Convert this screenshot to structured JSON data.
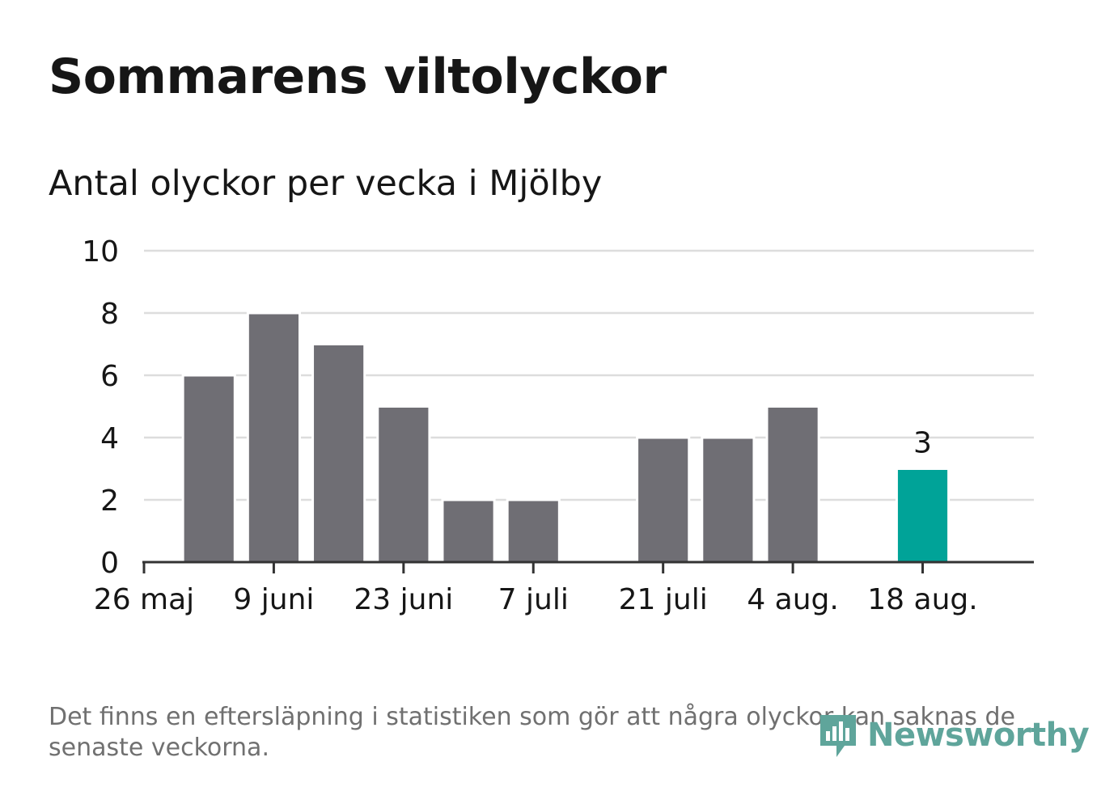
{
  "title": "Sommarens viltolyckor",
  "subtitle": "Antal olyckor per vecka i Mjölby",
  "footnote": "Det finns en eftersläpning i statistiken som gör att några olyckor kan saknas de senaste veckorna.",
  "brand": {
    "name": "Newsworthy",
    "icon": "newsworthy-logo-icon",
    "color": "#5fa59b"
  },
  "colors": {
    "bar": "#6f6e74",
    "highlight": "#00a398",
    "grid": "#dddddd",
    "axis": "#333333",
    "text": "#161616"
  },
  "chart_data": {
    "type": "bar",
    "title": "Antal olyckor per vecka i Mjölby",
    "x": [
      "2019-06-02",
      "2019-06-09",
      "2019-06-16",
      "2019-06-23",
      "2019-06-30",
      "2019-07-07",
      "2019-07-21",
      "2019-07-28",
      "2019-08-04",
      "2019-08-18"
    ],
    "values": [
      6,
      8,
      7,
      5,
      2,
      2,
      4,
      4,
      5,
      3
    ],
    "highlight_last": true,
    "highlight_label": "3",
    "xaxis": {
      "range": [
        "2019-05-26",
        "2019-08-30"
      ],
      "ticks": [
        "2019-05-26",
        "2019-06-09",
        "2019-06-23",
        "2019-07-07",
        "2019-07-21",
        "2019-08-04",
        "2019-08-18"
      ],
      "tick_labels": [
        "26 maj",
        "9 juni",
        "23 juni",
        "7 juli",
        "21 juli",
        "4 aug.",
        "18 aug."
      ]
    },
    "yaxis": {
      "ylim": [
        0,
        10
      ],
      "ticks": [
        0,
        2,
        4,
        6,
        8,
        10
      ]
    },
    "grid": true,
    "legend": "none"
  }
}
